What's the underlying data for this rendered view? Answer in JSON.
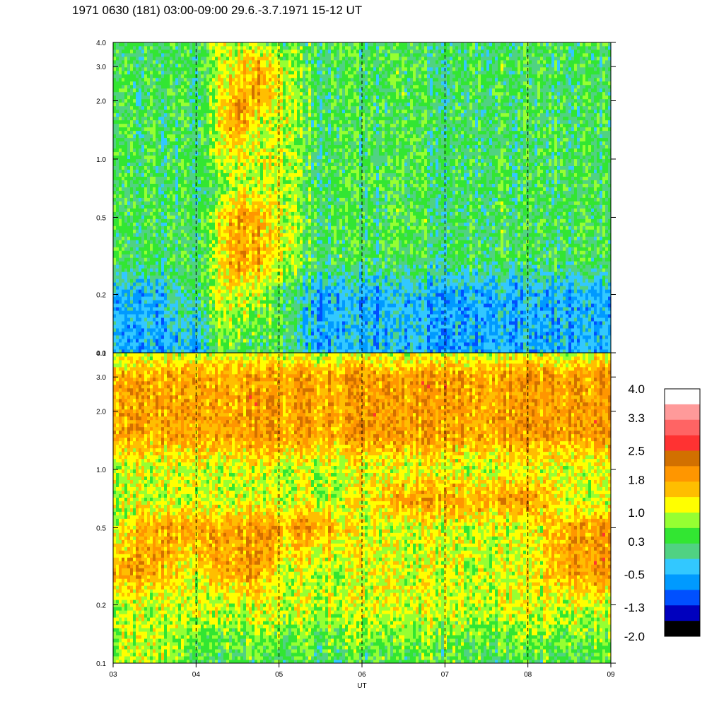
{
  "title": "1971 0630 (181) 03:00-09:00 29.6.-3.7.1971  15-12 UT",
  "chart_data": {
    "type": "heatmap",
    "title": "1971 0630 (181) 03:00-09:00 29.6.-3.7.1971  15-12 UT",
    "xlabel": "UT",
    "ylabel": "",
    "xlim": [
      3,
      9
    ],
    "x_ticks": [
      "03",
      "04",
      "05",
      "06",
      "07",
      "08",
      "09"
    ],
    "x_tick_values": [
      3,
      4,
      5,
      6,
      7,
      8,
      9
    ],
    "y_scale": "log",
    "panels": [
      {
        "name": "",
        "ylim": [
          0.1,
          4.0
        ],
        "y_ticks": [
          "0.1",
          "0.2",
          "0.5",
          "1.0",
          "2.0",
          "3.0",
          "4.0"
        ],
        "y_tick_values": [
          0.1,
          0.2,
          0.5,
          1.0,
          2.0,
          3.0,
          4.0
        ],
        "x_hours": [
          3.0,
          3.5,
          4.0,
          4.25,
          4.5,
          4.75,
          5.0,
          5.5,
          6.0,
          6.5,
          7.0,
          7.5,
          8.0,
          8.5,
          9.0
        ],
        "y_values": [
          0.1,
          0.2,
          0.3,
          0.5,
          0.7,
          1.0,
          1.5,
          2.0,
          3.0,
          4.0
        ],
        "z": [
          [
            -0.5,
            -0.5,
            0.3,
            0.3,
            0.3,
            0.3,
            0.3,
            0.3,
            0.3,
            0.3
          ],
          [
            -0.5,
            -0.5,
            0.3,
            0.3,
            0.3,
            0.3,
            0.3,
            0.3,
            0.3,
            0.3
          ],
          [
            -0.5,
            0.3,
            0.3,
            0.3,
            0.3,
            0.3,
            0.3,
            0.3,
            0.3,
            0.3
          ],
          [
            0.3,
            1.0,
            1.0,
            1.0,
            0.3,
            1.0,
            1.0,
            1.0,
            1.0,
            1.0
          ],
          [
            0.3,
            1.0,
            1.8,
            1.8,
            1.0,
            1.0,
            1.8,
            1.8,
            1.0,
            1.0
          ],
          [
            0.3,
            1.0,
            1.8,
            1.8,
            1.0,
            1.0,
            1.0,
            1.8,
            1.8,
            1.0
          ],
          [
            0.3,
            0.3,
            1.0,
            1.0,
            1.0,
            1.0,
            1.0,
            1.0,
            1.0,
            0.3
          ],
          [
            -0.5,
            -0.5,
            0.3,
            0.3,
            0.3,
            0.3,
            0.3,
            0.3,
            0.3,
            0.3
          ],
          [
            -0.5,
            -0.5,
            0.3,
            0.3,
            0.3,
            0.3,
            0.3,
            0.3,
            0.3,
            0.3
          ],
          [
            -0.5,
            -0.5,
            0.3,
            0.3,
            0.3,
            0.3,
            0.3,
            0.3,
            0.3,
            0.3
          ],
          [
            -0.5,
            -0.5,
            0.3,
            0.3,
            0.3,
            0.3,
            0.3,
            0.3,
            0.3,
            0.3
          ],
          [
            -0.5,
            -0.5,
            0.3,
            0.3,
            0.3,
            0.3,
            0.3,
            0.3,
            0.3,
            0.3
          ],
          [
            -0.5,
            -0.5,
            0.3,
            0.3,
            0.3,
            0.3,
            0.3,
            0.3,
            0.3,
            0.3
          ],
          [
            -0.5,
            -0.5,
            0.3,
            0.3,
            0.3,
            0.3,
            0.3,
            0.3,
            0.3,
            0.3
          ],
          [
            -0.5,
            -0.5,
            0.3,
            0.3,
            0.3,
            0.3,
            0.3,
            0.3,
            0.3,
            0.3
          ]
        ]
      },
      {
        "name": "",
        "ylim": [
          0.1,
          4.0
        ],
        "y_ticks": [
          "0.1",
          "0.2",
          "0.5",
          "1.0",
          "2.0",
          "3.0",
          "4.0"
        ],
        "y_tick_values": [
          0.1,
          0.2,
          0.5,
          1.0,
          2.0,
          3.0,
          4.0
        ],
        "x_hours": [
          3.0,
          3.5,
          4.0,
          4.25,
          4.5,
          4.75,
          5.0,
          5.5,
          6.0,
          6.5,
          7.0,
          7.5,
          8.0,
          8.5,
          9.0
        ],
        "y_values": [
          0.1,
          0.2,
          0.3,
          0.5,
          0.7,
          1.0,
          1.5,
          2.0,
          3.0,
          4.0
        ],
        "z": [
          [
            1.0,
            1.0,
            1.8,
            1.0,
            1.0,
            1.0,
            1.8,
            1.8,
            1.8,
            1.0
          ],
          [
            1.0,
            1.0,
            1.8,
            1.8,
            1.0,
            1.0,
            1.8,
            1.8,
            1.8,
            1.0
          ],
          [
            0.3,
            1.0,
            1.0,
            1.8,
            1.0,
            1.0,
            1.8,
            1.8,
            1.8,
            1.0
          ],
          [
            0.3,
            1.0,
            1.8,
            1.8,
            1.0,
            1.0,
            1.8,
            1.8,
            1.8,
            1.0
          ],
          [
            0.3,
            1.0,
            1.8,
            1.8,
            1.0,
            1.0,
            1.8,
            1.8,
            1.8,
            1.0
          ],
          [
            0.3,
            1.0,
            1.8,
            1.8,
            1.0,
            1.0,
            1.8,
            1.8,
            1.8,
            1.0
          ],
          [
            0.3,
            1.0,
            1.0,
            1.8,
            1.0,
            1.0,
            1.8,
            1.8,
            1.8,
            1.0
          ],
          [
            0.3,
            1.0,
            1.0,
            1.8,
            1.0,
            1.0,
            1.8,
            1.8,
            1.8,
            1.0
          ],
          [
            0.3,
            1.0,
            1.0,
            1.0,
            1.0,
            1.0,
            1.8,
            1.8,
            1.8,
            1.0
          ],
          [
            0.3,
            1.0,
            1.0,
            1.0,
            1.8,
            1.0,
            1.8,
            1.8,
            1.8,
            1.0
          ],
          [
            0.3,
            1.0,
            1.0,
            1.0,
            1.8,
            1.0,
            1.8,
            1.8,
            1.8,
            1.0
          ],
          [
            0.3,
            1.0,
            1.0,
            1.0,
            1.8,
            1.0,
            1.8,
            1.8,
            1.8,
            1.0
          ],
          [
            0.3,
            1.0,
            1.0,
            1.0,
            1.8,
            1.0,
            1.8,
            1.8,
            1.8,
            1.0
          ],
          [
            0.3,
            1.0,
            1.8,
            1.8,
            1.0,
            1.0,
            1.8,
            1.8,
            1.8,
            1.0
          ],
          [
            0.3,
            1.0,
            1.8,
            1.8,
            1.0,
            1.0,
            1.8,
            1.8,
            1.8,
            1.0
          ]
        ]
      }
    ],
    "grid": "dashed vertical at each hour",
    "colorbar": {
      "labels": [
        "4.0",
        "3.3",
        "2.5",
        "1.8",
        "1.0",
        "0.3",
        "-0.5",
        "-1.3",
        "-2.0"
      ],
      "label_values": [
        4.0,
        3.3,
        2.5,
        1.8,
        1.0,
        0.3,
        -0.5,
        -1.3,
        -2.0
      ],
      "colors": [
        "#ffffff",
        "#ff9a9a",
        "#ff6464",
        "#ff3232",
        "#d27000",
        "#ff9600",
        "#ffbe00",
        "#ffff00",
        "#96ff32",
        "#32e632",
        "#50d282",
        "#32c8ff",
        "#009aff",
        "#0050ff",
        "#0000be",
        "#000000"
      ]
    }
  }
}
